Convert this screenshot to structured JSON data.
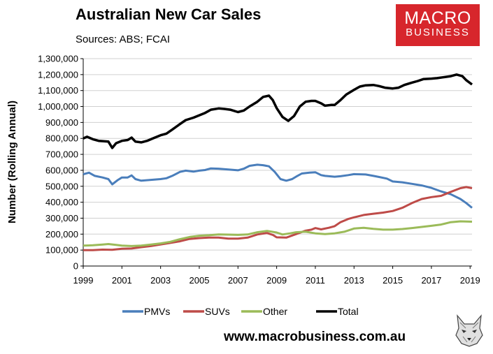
{
  "header": {
    "title": "Australian New Car Sales",
    "subtitle": "Sources: ABS; FCAI"
  },
  "logo": {
    "line1": "MACRO",
    "line2": "BUSINESS",
    "color": "#d7262c"
  },
  "footer": {
    "website": "www.macrobusiness.com.au"
  },
  "chart_data": {
    "type": "line",
    "title": "Australian New Car Sales",
    "ylabel": "Number (Rolling Annual)",
    "xlabel": "",
    "xlim": [
      1999,
      2019.1
    ],
    "ylim": [
      0,
      1300000
    ],
    "x_ticks": [
      "1999",
      "2001",
      "2003",
      "2005",
      "2007",
      "2009",
      "2011",
      "2013",
      "2015",
      "2017",
      "2019"
    ],
    "y_ticks": [
      "0",
      "100,000",
      "200,000",
      "300,000",
      "400,000",
      "500,000",
      "600,000",
      "700,000",
      "800,000",
      "900,000",
      "1,000,000",
      "1,100,000",
      "1,200,000",
      "1,300,000"
    ],
    "grid": "horizontal",
    "legend": "bottom",
    "series": [
      {
        "name": "PMVs",
        "color": "#4a7ebb",
        "points": [
          [
            1999,
            575000
          ],
          [
            1999.3,
            585000
          ],
          [
            1999.6,
            565000
          ],
          [
            2000,
            555000
          ],
          [
            2000.3,
            545000
          ],
          [
            2000.5,
            512000
          ],
          [
            2000.8,
            540000
          ],
          [
            2001,
            555000
          ],
          [
            2001.3,
            555000
          ],
          [
            2001.5,
            568000
          ],
          [
            2001.7,
            545000
          ],
          [
            2002,
            535000
          ],
          [
            2002.5,
            540000
          ],
          [
            2003,
            545000
          ],
          [
            2003.3,
            550000
          ],
          [
            2003.6,
            565000
          ],
          [
            2004,
            590000
          ],
          [
            2004.3,
            598000
          ],
          [
            2004.7,
            592000
          ],
          [
            2005,
            598000
          ],
          [
            2005.3,
            602000
          ],
          [
            2005.6,
            612000
          ],
          [
            2006,
            610000
          ],
          [
            2006.5,
            605000
          ],
          [
            2007,
            600000
          ],
          [
            2007.3,
            610000
          ],
          [
            2007.6,
            628000
          ],
          [
            2008,
            635000
          ],
          [
            2008.3,
            632000
          ],
          [
            2008.6,
            625000
          ],
          [
            2008.9,
            590000
          ],
          [
            2009.2,
            545000
          ],
          [
            2009.5,
            535000
          ],
          [
            2009.8,
            545000
          ],
          [
            2010,
            560000
          ],
          [
            2010.3,
            580000
          ],
          [
            2010.7,
            585000
          ],
          [
            2011,
            588000
          ],
          [
            2011.3,
            570000
          ],
          [
            2011.5,
            565000
          ],
          [
            2012,
            560000
          ],
          [
            2012.3,
            563000
          ],
          [
            2012.7,
            570000
          ],
          [
            2013,
            576000
          ],
          [
            2013.3,
            575000
          ],
          [
            2013.6,
            574000
          ],
          [
            2014,
            565000
          ],
          [
            2014.3,
            558000
          ],
          [
            2014.7,
            548000
          ],
          [
            2015,
            530000
          ],
          [
            2015.5,
            525000
          ],
          [
            2016,
            515000
          ],
          [
            2016.5,
            505000
          ],
          [
            2017,
            490000
          ],
          [
            2017.5,
            468000
          ],
          [
            2018,
            450000
          ],
          [
            2018.5,
            420000
          ],
          [
            2018.8,
            395000
          ],
          [
            2019.1,
            365000
          ]
        ]
      },
      {
        "name": "SUVs",
        "color": "#be4b48",
        "points": [
          [
            1999,
            100000
          ],
          [
            1999.5,
            100000
          ],
          [
            2000,
            103000
          ],
          [
            2000.5,
            102000
          ],
          [
            2001,
            108000
          ],
          [
            2001.5,
            110000
          ],
          [
            2002,
            118000
          ],
          [
            2002.5,
            125000
          ],
          [
            2003,
            135000
          ],
          [
            2003.5,
            145000
          ],
          [
            2004,
            155000
          ],
          [
            2004.5,
            170000
          ],
          [
            2005,
            175000
          ],
          [
            2005.5,
            178000
          ],
          [
            2006,
            178000
          ],
          [
            2006.5,
            172000
          ],
          [
            2007,
            172000
          ],
          [
            2007.5,
            178000
          ],
          [
            2008,
            198000
          ],
          [
            2008.5,
            207000
          ],
          [
            2008.8,
            195000
          ],
          [
            2009,
            180000
          ],
          [
            2009.5,
            178000
          ],
          [
            2010,
            200000
          ],
          [
            2010.5,
            222000
          ],
          [
            2010.8,
            228000
          ],
          [
            2011,
            238000
          ],
          [
            2011.3,
            230000
          ],
          [
            2011.7,
            240000
          ],
          [
            2012,
            250000
          ],
          [
            2012.3,
            275000
          ],
          [
            2012.7,
            295000
          ],
          [
            2013,
            305000
          ],
          [
            2013.5,
            320000
          ],
          [
            2014,
            328000
          ],
          [
            2014.5,
            335000
          ],
          [
            2015,
            345000
          ],
          [
            2015.5,
            365000
          ],
          [
            2016,
            395000
          ],
          [
            2016.5,
            420000
          ],
          [
            2017,
            432000
          ],
          [
            2017.5,
            440000
          ],
          [
            2018,
            465000
          ],
          [
            2018.5,
            488000
          ],
          [
            2018.8,
            495000
          ],
          [
            2019.1,
            488000
          ]
        ]
      },
      {
        "name": "Other",
        "color": "#9bbb59",
        "points": [
          [
            1999,
            128000
          ],
          [
            1999.5,
            130000
          ],
          [
            2000,
            135000
          ],
          [
            2000.3,
            138000
          ],
          [
            2000.7,
            132000
          ],
          [
            2001,
            128000
          ],
          [
            2001.5,
            125000
          ],
          [
            2002,
            128000
          ],
          [
            2002.5,
            135000
          ],
          [
            2003,
            142000
          ],
          [
            2003.5,
            152000
          ],
          [
            2004,
            168000
          ],
          [
            2004.5,
            182000
          ],
          [
            2005,
            190000
          ],
          [
            2005.5,
            193000
          ],
          [
            2006,
            198000
          ],
          [
            2006.5,
            197000
          ],
          [
            2007,
            195000
          ],
          [
            2007.5,
            198000
          ],
          [
            2008,
            212000
          ],
          [
            2008.5,
            220000
          ],
          [
            2009,
            210000
          ],
          [
            2009.3,
            198000
          ],
          [
            2009.7,
            205000
          ],
          [
            2010,
            212000
          ],
          [
            2010.5,
            215000
          ],
          [
            2011,
            205000
          ],
          [
            2011.5,
            200000
          ],
          [
            2012,
            205000
          ],
          [
            2012.5,
            215000
          ],
          [
            2013,
            235000
          ],
          [
            2013.5,
            240000
          ],
          [
            2014,
            233000
          ],
          [
            2014.5,
            228000
          ],
          [
            2015,
            228000
          ],
          [
            2015.5,
            232000
          ],
          [
            2016,
            238000
          ],
          [
            2016.5,
            245000
          ],
          [
            2017,
            252000
          ],
          [
            2017.5,
            260000
          ],
          [
            2018,
            275000
          ],
          [
            2018.5,
            280000
          ],
          [
            2019.1,
            278000
          ]
        ]
      },
      {
        "name": "Total",
        "color": "#000000",
        "points": [
          [
            1999,
            800000
          ],
          [
            1999.2,
            810000
          ],
          [
            1999.5,
            795000
          ],
          [
            1999.8,
            785000
          ],
          [
            2000,
            783000
          ],
          [
            2000.3,
            780000
          ],
          [
            2000.5,
            740000
          ],
          [
            2000.7,
            770000
          ],
          [
            2001,
            785000
          ],
          [
            2001.3,
            790000
          ],
          [
            2001.5,
            805000
          ],
          [
            2001.7,
            780000
          ],
          [
            2002,
            775000
          ],
          [
            2002.3,
            785000
          ],
          [
            2002.6,
            800000
          ],
          [
            2003,
            820000
          ],
          [
            2003.3,
            830000
          ],
          [
            2003.6,
            855000
          ],
          [
            2004,
            890000
          ],
          [
            2004.3,
            915000
          ],
          [
            2004.7,
            930000
          ],
          [
            2005,
            945000
          ],
          [
            2005.3,
            960000
          ],
          [
            2005.6,
            980000
          ],
          [
            2006,
            988000
          ],
          [
            2006.3,
            985000
          ],
          [
            2006.6,
            980000
          ],
          [
            2007,
            965000
          ],
          [
            2007.3,
            975000
          ],
          [
            2007.6,
            1000000
          ],
          [
            2008,
            1030000
          ],
          [
            2008.3,
            1060000
          ],
          [
            2008.6,
            1068000
          ],
          [
            2008.8,
            1040000
          ],
          [
            2009,
            990000
          ],
          [
            2009.3,
            935000
          ],
          [
            2009.6,
            910000
          ],
          [
            2009.9,
            940000
          ],
          [
            2010.2,
            1000000
          ],
          [
            2010.5,
            1030000
          ],
          [
            2010.8,
            1035000
          ],
          [
            2011,
            1035000
          ],
          [
            2011.3,
            1020000
          ],
          [
            2011.5,
            1005000
          ],
          [
            2011.8,
            1010000
          ],
          [
            2012,
            1010000
          ],
          [
            2012.3,
            1040000
          ],
          [
            2012.6,
            1075000
          ],
          [
            2013,
            1105000
          ],
          [
            2013.3,
            1125000
          ],
          [
            2013.6,
            1133000
          ],
          [
            2014,
            1135000
          ],
          [
            2014.3,
            1128000
          ],
          [
            2014.6,
            1118000
          ],
          [
            2015,
            1113000
          ],
          [
            2015.3,
            1118000
          ],
          [
            2015.6,
            1135000
          ],
          [
            2016,
            1150000
          ],
          [
            2016.3,
            1160000
          ],
          [
            2016.6,
            1172000
          ],
          [
            2017,
            1175000
          ],
          [
            2017.3,
            1178000
          ],
          [
            2017.6,
            1183000
          ],
          [
            2018,
            1190000
          ],
          [
            2018.3,
            1200000
          ],
          [
            2018.6,
            1190000
          ],
          [
            2018.8,
            1165000
          ],
          [
            2019.1,
            1138000
          ]
        ]
      }
    ]
  }
}
